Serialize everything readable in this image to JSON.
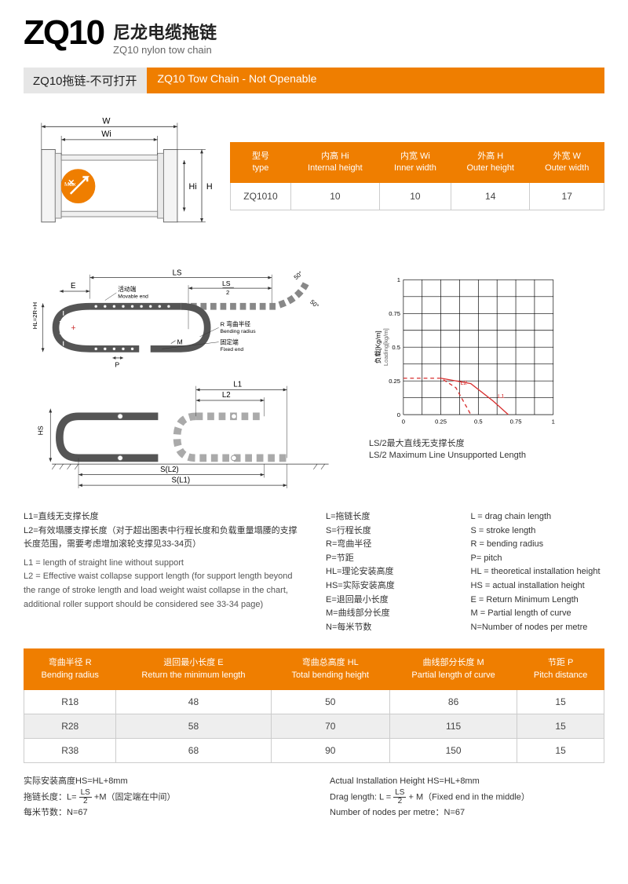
{
  "brand_accent": "#ef7e00",
  "grey_bg": "#e6e6e6",
  "border_color": "#cccccc",
  "text_color": "#333333",
  "header": {
    "code": "ZQ10",
    "title_cn": "尼龙电缆拖链",
    "title_en": "ZQ10 nylon tow chain"
  },
  "section_bar": {
    "left": "ZQ10拖链-不可打开",
    "right": "ZQ10 Tow Chain - Not Openable"
  },
  "cross_section_labels": {
    "W": "W",
    "Wi": "Wi",
    "Hi": "Hi",
    "H": "H",
    "Max": "Max"
  },
  "table1": {
    "headers": [
      {
        "cn": "型号",
        "en": "type"
      },
      {
        "cn": "内高 Hi",
        "en": "Internal height"
      },
      {
        "cn": "内宽 Wi",
        "en": "Inner width"
      },
      {
        "cn": "外高 H",
        "en": "Outer height"
      },
      {
        "cn": "外宽 W",
        "en": "Outer width"
      }
    ],
    "row": [
      "ZQ1010",
      "10",
      "10",
      "14",
      "17"
    ]
  },
  "chain_labels": {
    "LS": "LS",
    "LS2": "LS",
    "LS2_sub": "2",
    "E": "E",
    "movable_cn": "活动端",
    "movable_en": "Movable end",
    "R_cn": "R 弯曲半径",
    "R_en": "Bending radius",
    "fixed_cn": "固定端",
    "fixed_en": "Fixed end",
    "P": "P",
    "M": "M",
    "HL": "HL=2R+H",
    "angle": "50°",
    "L1": "L1",
    "L2": "L2",
    "HS": "HS",
    "SL2": "S(L2)",
    "SL1": "S(L1)"
  },
  "chart": {
    "y_label_cn": "负载[Kg/m]",
    "y_label_en": "Loading[kg/m]",
    "y_ticks": [
      "0",
      "0.25",
      "0.5",
      "0.75",
      "1"
    ],
    "x_ticks": [
      "0",
      "0.25",
      "0.5",
      "0.75",
      "1"
    ],
    "curves": [
      {
        "label": "L1",
        "dash": false,
        "points": [
          [
            0.25,
            0.27
          ],
          [
            0.45,
            0.23
          ],
          [
            0.6,
            0.1
          ],
          [
            0.7,
            0.0
          ]
        ]
      },
      {
        "label": "L2",
        "dash": true,
        "points": [
          [
            0.0,
            0.27
          ],
          [
            0.25,
            0.27
          ],
          [
            0.35,
            0.2
          ],
          [
            0.45,
            0.0
          ]
        ]
      }
    ],
    "curve_color": "#d82f2f",
    "grid_color": "#000000",
    "caption_cn": "LS/2最大直线无支撑长度",
    "caption_en": "LS/2 Maximum Line Unsupported Length"
  },
  "definitions": {
    "left_cn": [
      "L1=直线无支撑长度",
      "L2=有效塌腰支撑长度（对于超出图表中行程长度和负载重量塌腰的支撑长度范围，需要考虑增加滚轮支撑见33-34页）"
    ],
    "left_en": [
      "L1 = length of straight line without support",
      "L2 = Effective waist collapse support length (for support length beyond the range of stroke length and load weight waist collapse in the chart, additional roller support should be considered see 33-34 page)"
    ],
    "right_cn": [
      "L=拖链长度",
      "S=行程长度",
      "R=弯曲半径",
      "P=节距",
      "HL=理论安装高度",
      "HS=实际安装高度",
      "E=退回最小长度",
      "M=曲线部分长度",
      "N=每米节数"
    ],
    "right_en": [
      "L = drag chain length",
      "S = stroke length",
      "R = bending radius",
      "P= pitch",
      "HL = theoretical installation height",
      "HS = actual installation height",
      "E = Return Minimum Length",
      "M = Partial length of curve",
      "N=Number of nodes per metre"
    ]
  },
  "table2": {
    "headers": [
      {
        "cn": "弯曲半径 R",
        "en": "Bending radius"
      },
      {
        "cn": "退回最小长度 E",
        "en": "Return the minimum length"
      },
      {
        "cn": "弯曲总高度 HL",
        "en": "Total bending height"
      },
      {
        "cn": "曲线部分长度 M",
        "en": "Partial length of curve"
      },
      {
        "cn": "节距 P",
        "en": "Pitch distance"
      }
    ],
    "rows": [
      [
        "R18",
        "48",
        "50",
        "86",
        "15"
      ],
      [
        "R28",
        "58",
        "70",
        "115",
        "15"
      ],
      [
        "R38",
        "68",
        "90",
        "150",
        "15"
      ]
    ]
  },
  "footer": {
    "cn": [
      "实际安装高度HS=HL+8mm",
      "拖链长度：L= [LS/2] +M（固定端在中间）",
      "每米节数：N=67"
    ],
    "en": [
      "Actual Installation Height HS=HL+8mm",
      "Drag length: L = [LS/2] + M（Fixed end in the middle）",
      "Number of nodes per metre：N=67"
    ]
  }
}
